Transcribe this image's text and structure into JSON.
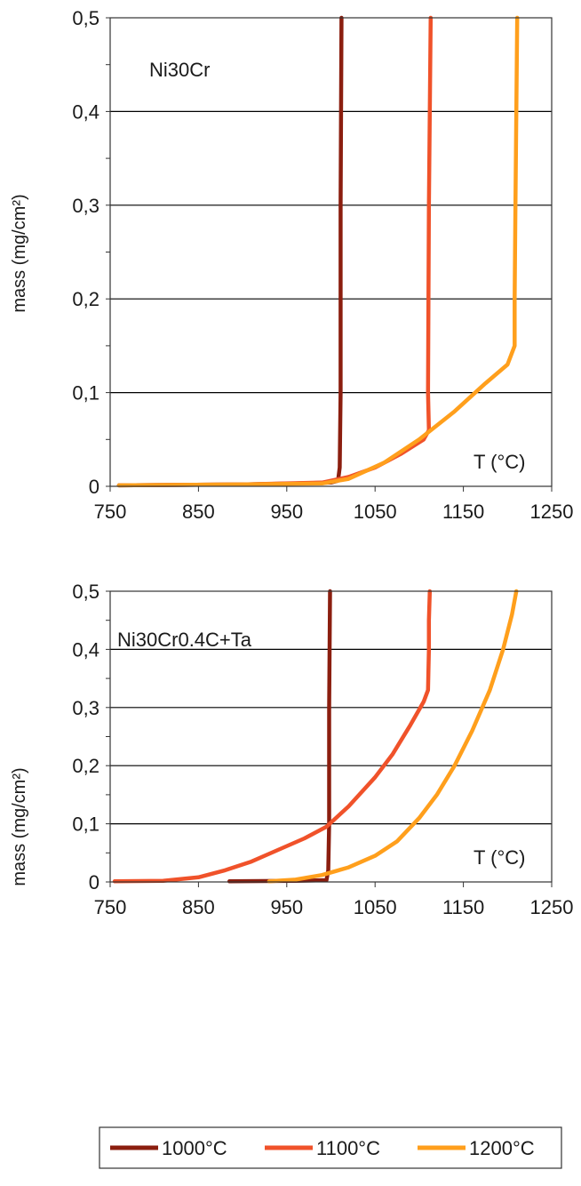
{
  "colors": {
    "s1000": "#8b1e0f",
    "s1100": "#f0522a",
    "s1200": "#ff9f1c",
    "grid": "#000000",
    "axis": "#333333"
  },
  "legend": {
    "items": [
      {
        "label": "1000°C",
        "color": "#8b1e0f"
      },
      {
        "label": "1100°C",
        "color": "#f0522a"
      },
      {
        "label": "1200°C",
        "color": "#ff9f1c"
      }
    ]
  },
  "chart_data": [
    {
      "type": "line",
      "title": "",
      "annotation": "Ni30Cr",
      "xlabel": "T (°C)",
      "ylabel": "mass (mg/cm²)",
      "xlim": [
        750,
        1250
      ],
      "ylim": [
        0,
        0.5
      ],
      "xticks": [
        "750",
        "850",
        "950",
        "1050",
        "1150",
        "1250"
      ],
      "yticks": [
        "0",
        "0,1",
        "0,2",
        "0,3",
        "0,4",
        "0,5"
      ],
      "grid": true,
      "series": [
        {
          "name": "1000°C",
          "color": "#8b1e0f",
          "points": [
            [
              760,
              0.001
            ],
            [
              900,
              0.002
            ],
            [
              960,
              0.003
            ],
            [
              1000,
              0.004
            ],
            [
              1008,
              0.006
            ],
            [
              1010,
              0.02
            ],
            [
              1011,
              0.1
            ],
            [
              1011,
              0.3
            ],
            [
              1012,
              0.5
            ]
          ]
        },
        {
          "name": "1100°C",
          "color": "#f0522a",
          "points": [
            [
              760,
              0.001
            ],
            [
              900,
              0.002
            ],
            [
              990,
              0.004
            ],
            [
              1020,
              0.01
            ],
            [
              1050,
              0.02
            ],
            [
              1080,
              0.035
            ],
            [
              1105,
              0.05
            ],
            [
              1111,
              0.06
            ],
            [
              1110,
              0.1
            ],
            [
              1111,
              0.3
            ],
            [
              1113,
              0.5
            ]
          ]
        },
        {
          "name": "1200°C",
          "color": "#ff9f1c",
          "points": [
            [
              760,
              0.001
            ],
            [
              900,
              0.002
            ],
            [
              990,
              0.003
            ],
            [
              1020,
              0.008
            ],
            [
              1060,
              0.025
            ],
            [
              1100,
              0.05
            ],
            [
              1140,
              0.08
            ],
            [
              1175,
              0.11
            ],
            [
              1200,
              0.13
            ],
            [
              1208,
              0.15
            ],
            [
              1208,
              0.2
            ],
            [
              1209,
              0.3
            ],
            [
              1210,
              0.4
            ],
            [
              1211,
              0.5
            ]
          ]
        }
      ]
    },
    {
      "type": "line",
      "title": "",
      "annotation": "Ni30Cr0.4C+Ta",
      "xlabel": "T (°C)",
      "ylabel": "mass (mg/cm²)",
      "xlim": [
        750,
        1250
      ],
      "ylim": [
        0,
        0.5
      ],
      "xticks": [
        "750",
        "850",
        "950",
        "1050",
        "1150",
        "1250"
      ],
      "yticks": [
        "0",
        "0,1",
        "0,2",
        "0,3",
        "0,4",
        "0,5"
      ],
      "grid": true,
      "series": [
        {
          "name": "1000°C",
          "color": "#8b1e0f",
          "points": [
            [
              885,
              0.001
            ],
            [
              960,
              0.002
            ],
            [
              995,
              0.003
            ],
            [
              997,
              0.02
            ],
            [
              998,
              0.1
            ],
            [
              998,
              0.3
            ],
            [
              999,
              0.5
            ]
          ]
        },
        {
          "name": "1100°C",
          "color": "#f0522a",
          "points": [
            [
              755,
              0.001
            ],
            [
              810,
              0.002
            ],
            [
              850,
              0.008
            ],
            [
              880,
              0.02
            ],
            [
              910,
              0.035
            ],
            [
              940,
              0.055
            ],
            [
              970,
              0.075
            ],
            [
              995,
              0.095
            ],
            [
              1020,
              0.13
            ],
            [
              1050,
              0.18
            ],
            [
              1070,
              0.22
            ],
            [
              1090,
              0.27
            ],
            [
              1105,
              0.31
            ],
            [
              1110,
              0.33
            ],
            [
              1111,
              0.4
            ],
            [
              1111,
              0.45
            ],
            [
              1112,
              0.5
            ]
          ]
        },
        {
          "name": "1200°C",
          "color": "#ff9f1c",
          "points": [
            [
              930,
              0.001
            ],
            [
              960,
              0.004
            ],
            [
              990,
              0.012
            ],
            [
              1020,
              0.025
            ],
            [
              1050,
              0.045
            ],
            [
              1075,
              0.07
            ],
            [
              1100,
              0.11
            ],
            [
              1120,
              0.15
            ],
            [
              1140,
              0.2
            ],
            [
              1160,
              0.26
            ],
            [
              1180,
              0.33
            ],
            [
              1195,
              0.4
            ],
            [
              1205,
              0.46
            ],
            [
              1210,
              0.5
            ]
          ]
        }
      ]
    }
  ]
}
